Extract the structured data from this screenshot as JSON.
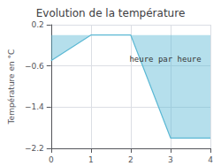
{
  "chart_data": {
    "type": "line",
    "title": "Evolution de la température",
    "ylabel": "Température en °C",
    "annotations": [
      "heure par heure"
    ],
    "x": [
      0,
      1,
      2,
      3,
      4
    ],
    "values": [
      -0.5,
      0.0,
      0.0,
      -2.0,
      -2.0
    ],
    "color": "#5bb8d4",
    "xlim": [
      0,
      4
    ],
    "ylim": [
      -2.2,
      0.2
    ],
    "xticks": [
      0,
      1,
      2,
      3,
      4
    ],
    "yticks": [
      0.2,
      {
        "value": -0.6,
        "label": "−0.6"
      },
      {
        "value": -1.4,
        "label": "−1.4"
      },
      {
        "value": -2.2,
        "label": "−2.2"
      }
    ],
    "grid": true
  }
}
